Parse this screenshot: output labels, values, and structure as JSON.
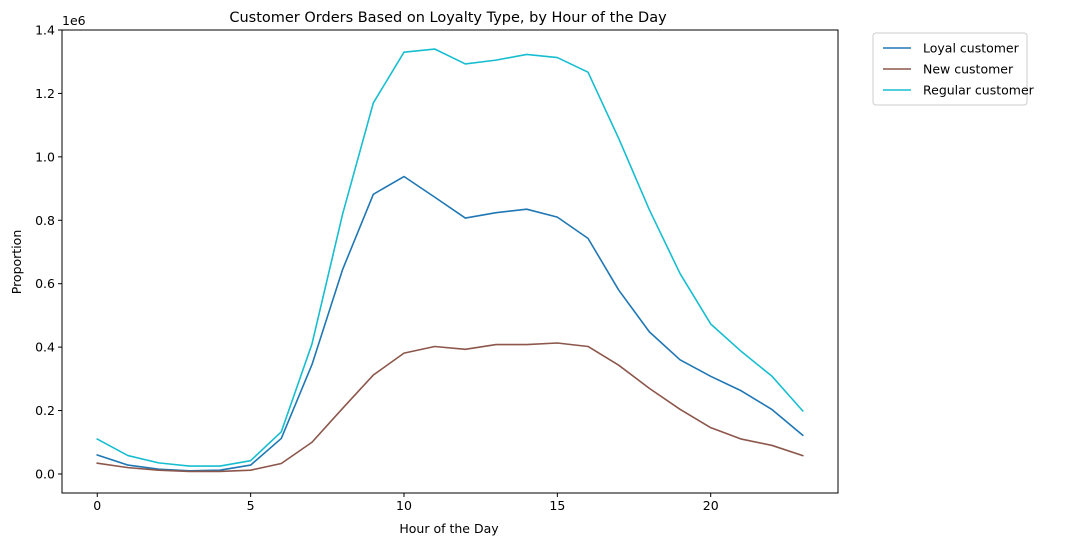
{
  "chart_data": {
    "type": "line",
    "title": "Customer Orders Based on Loyalty Type, by Hour of the Day",
    "xlabel": "Hour of the Day",
    "ylabel": "Proportion",
    "y_offset_label": "1e6",
    "x": [
      0,
      1,
      2,
      3,
      4,
      5,
      6,
      7,
      8,
      9,
      10,
      11,
      12,
      13,
      14,
      15,
      16,
      17,
      18,
      19,
      20,
      21,
      22,
      23
    ],
    "xlim": [
      -1.15,
      24.15
    ],
    "ylim": [
      -60000,
      1400000
    ],
    "x_ticks": [
      {
        "value": 0,
        "label": "0"
      },
      {
        "value": 5,
        "label": "5"
      },
      {
        "value": 10,
        "label": "10"
      },
      {
        "value": 15,
        "label": "15"
      },
      {
        "value": 20,
        "label": "20"
      }
    ],
    "y_ticks": [
      {
        "value": 0,
        "label": "0.0"
      },
      {
        "value": 200000,
        "label": "0.2"
      },
      {
        "value": 400000,
        "label": "0.4"
      },
      {
        "value": 600000,
        "label": "0.6"
      },
      {
        "value": 800000,
        "label": "0.8"
      },
      {
        "value": 1000000,
        "label": "1.0"
      },
      {
        "value": 1200000,
        "label": "1.2"
      },
      {
        "value": 1400000,
        "label": "1.4"
      }
    ],
    "grid": false,
    "legend_position": "outside-top-right",
    "series": [
      {
        "name": "Loyal customer",
        "color": "#1f77b4",
        "values": [
          60000,
          28000,
          15000,
          10000,
          12000,
          28000,
          112000,
          345000,
          645000,
          882000,
          938000,
          873000,
          807000,
          824000,
          835000,
          810000,
          743000,
          580000,
          448000,
          360000,
          308000,
          262000,
          203000,
          122000
        ]
      },
      {
        "name": "New customer",
        "color": "#8c564b",
        "values": [
          34000,
          20000,
          12000,
          8000,
          8000,
          12000,
          33000,
          100000,
          207000,
          312000,
          381000,
          402000,
          393000,
          408000,
          408000,
          413000,
          402000,
          343000,
          270000,
          204000,
          146000,
          110000,
          90000,
          58000
        ]
      },
      {
        "name": "Regular customer",
        "color": "#17becf",
        "values": [
          110000,
          58000,
          35000,
          25000,
          25000,
          42000,
          133000,
          410000,
          820000,
          1170000,
          1330000,
          1340000,
          1293000,
          1305000,
          1323000,
          1313000,
          1267000,
          1058000,
          833000,
          632000,
          473000,
          386000,
          308000,
          199000
        ]
      }
    ]
  }
}
